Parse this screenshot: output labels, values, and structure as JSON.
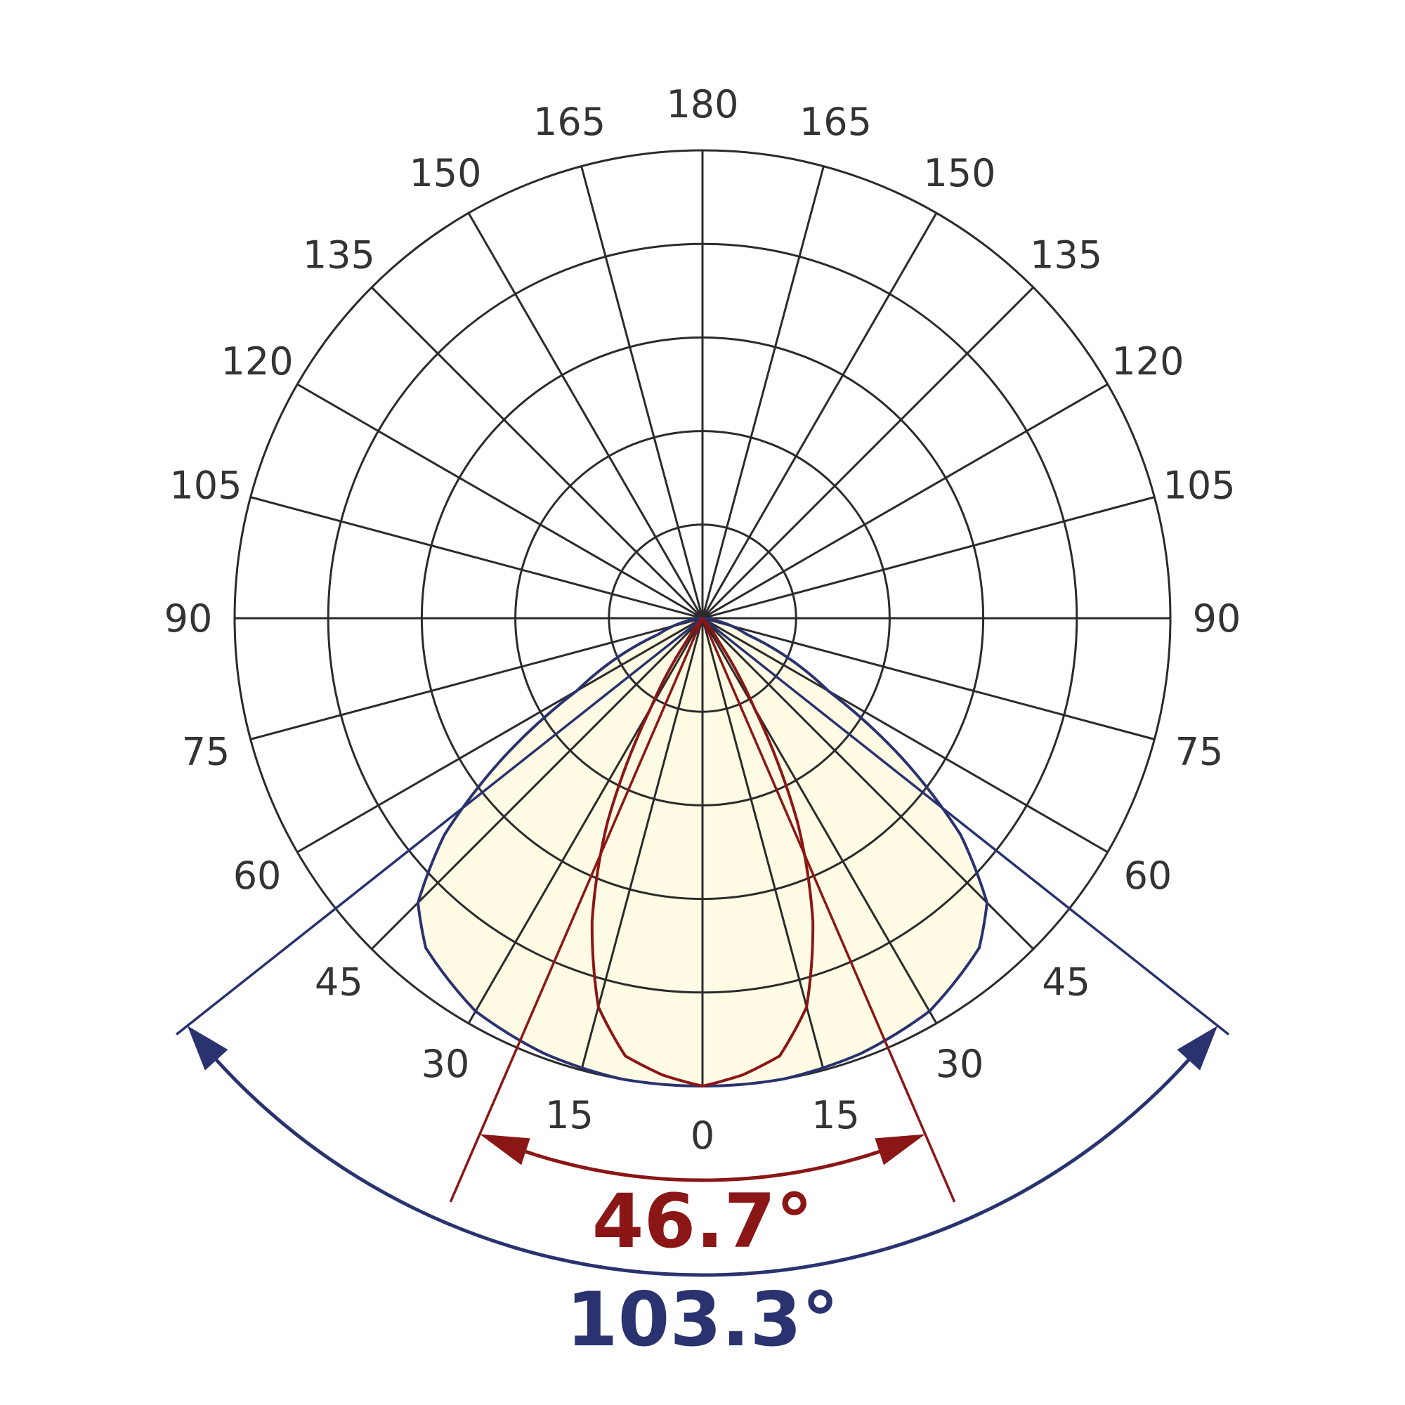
{
  "colors": {
    "grid": "#2b2b2b",
    "label": "#333333",
    "fill": "#fffbe4",
    "wide": "#2a326f",
    "narrow": "#8b1616"
  },
  "chart_data": {
    "type": "polar",
    "angle_labels": {
      "left": [
        "165",
        "150",
        "135",
        "120",
        "105",
        "90",
        "75",
        "60",
        "45",
        "30",
        "15"
      ],
      "right": [
        "165",
        "150",
        "135",
        "120",
        "105",
        "90",
        "75",
        "60",
        "45",
        "30",
        "15"
      ],
      "top": "180",
      "bottom": "0"
    },
    "rings": 5,
    "spoke_step_deg": 15,
    "series": [
      {
        "key": "wide",
        "color": "#2a326f",
        "beam_angle_deg": 103.3,
        "label": "103.3°",
        "curve": [
          [
            0,
            1.0
          ],
          [
            10,
            1.0
          ],
          [
            20,
            0.99
          ],
          [
            30,
            0.97
          ],
          [
            40,
            0.92
          ],
          [
            45,
            0.86
          ],
          [
            50,
            0.72
          ],
          [
            55,
            0.52
          ],
          [
            60,
            0.31
          ],
          [
            70,
            0.1
          ],
          [
            80,
            0.03
          ],
          [
            90,
            0.0
          ]
        ]
      },
      {
        "key": "narrow",
        "color": "#8b1616",
        "beam_angle_deg": 46.7,
        "label": "46.7°",
        "curve": [
          [
            0,
            1.0
          ],
          [
            5,
            0.98
          ],
          [
            10,
            0.95
          ],
          [
            15,
            0.86
          ],
          [
            20,
            0.69
          ],
          [
            23.35,
            0.55
          ],
          [
            25,
            0.48
          ],
          [
            30,
            0.22
          ],
          [
            35,
            0.06
          ],
          [
            40,
            0.0
          ]
        ]
      }
    ]
  }
}
